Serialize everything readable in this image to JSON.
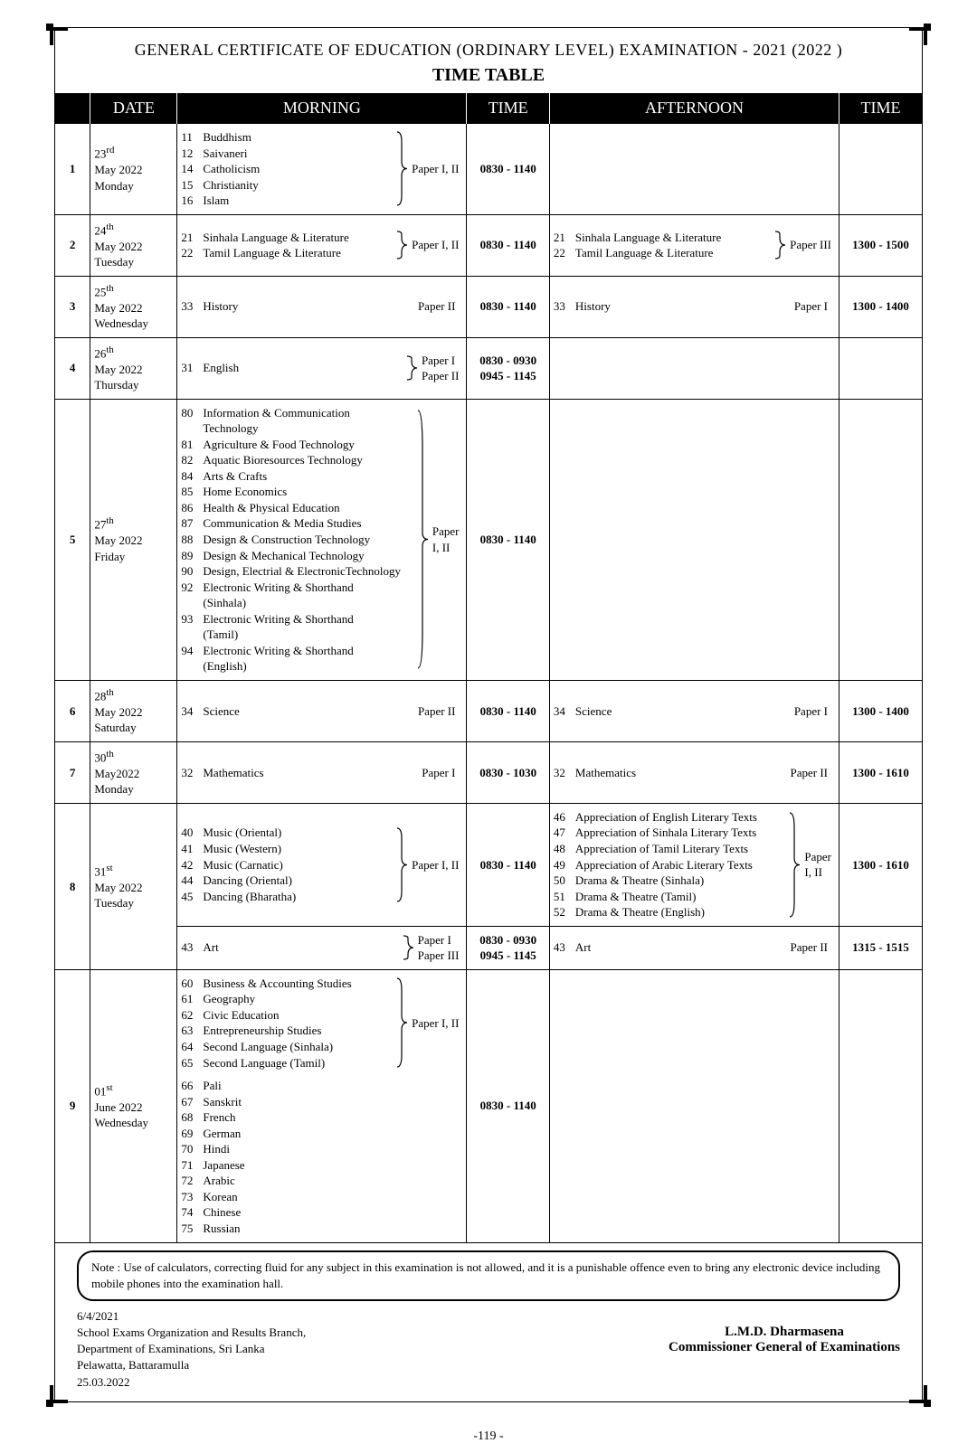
{
  "header": "GENERAL CERTIFICATE OF EDUCATION (ORDINARY LEVEL) EXAMINATION - 2021 (2022 )",
  "subtitle": "TIME TABLE",
  "columns": {
    "date": "DATE",
    "morning": "MORNING",
    "mtime": "TIME",
    "afternoon": "AFTERNOON",
    "atime": "TIME"
  },
  "rows": [
    {
      "num": "1",
      "date_day": "23",
      "date_sup": "rd",
      "date_month": "May 2022",
      "date_dow": "Monday",
      "morning": [
        {
          "subjects": [
            {
              "c": "11",
              "n": "Buddhism"
            },
            {
              "c": "12",
              "n": "Saivaneri"
            },
            {
              "c": "14",
              "n": "Catholicism"
            },
            {
              "c": "15",
              "n": "Christianity"
            },
            {
              "c": "16",
              "n": "Islam"
            }
          ],
          "brace": true,
          "paper": "Paper I, II"
        }
      ],
      "mtime": [
        "0830 - 1140"
      ],
      "afternoon": [],
      "atime": []
    },
    {
      "num": "2",
      "date_day": "24",
      "date_sup": "th",
      "date_month": "May 2022",
      "date_dow": "Tuesday",
      "morning": [
        {
          "subjects": [
            {
              "c": "21",
              "n": "Sinhala Language & Literature"
            },
            {
              "c": "22",
              "n": "Tamil Language & Literature"
            }
          ],
          "brace": true,
          "paper": "Paper I, II"
        }
      ],
      "mtime": [
        "0830 - 1140"
      ],
      "afternoon": [
        {
          "subjects": [
            {
              "c": "21",
              "n": "Sinhala Language & Literature"
            },
            {
              "c": "22",
              "n": "Tamil Language & Literature"
            }
          ],
          "brace": true,
          "paper": "Paper III"
        }
      ],
      "atime": [
        "1300 - 1500"
      ]
    },
    {
      "num": "3",
      "date_day": "25",
      "date_sup": "th",
      "date_month": "May 2022",
      "date_dow": "Wednesday",
      "morning": [
        {
          "subjects": [
            {
              "c": "33",
              "n": "History"
            }
          ],
          "brace": false,
          "paper": "Paper II",
          "right": true
        }
      ],
      "mtime": [
        "0830 - 1140"
      ],
      "afternoon": [
        {
          "subjects": [
            {
              "c": "33",
              "n": "History"
            }
          ],
          "brace": false,
          "paper": "Paper I",
          "right": true
        }
      ],
      "atime": [
        "1300 - 1400"
      ]
    },
    {
      "num": "4",
      "date_day": "26",
      "date_sup": "th",
      "date_month": "May 2022",
      "date_dow": "Thursday",
      "morning": [
        {
          "subjects": [
            {
              "c": "31",
              "n": "English"
            }
          ],
          "brace": true,
          "brace_small": true,
          "paper": "Paper I\nPaper  II"
        }
      ],
      "mtime": [
        "0830 - 0930\n0945 - 1145"
      ],
      "afternoon": [],
      "atime": []
    },
    {
      "num": "5",
      "date_day": "27",
      "date_sup": "th",
      "date_month": "May 2022",
      "date_dow": "Friday",
      "morning": [
        {
          "subjects": [
            {
              "c": "80",
              "n": "Information & Communication",
              "cont": "Technology"
            },
            {
              "c": "81",
              "n": "Agriculture & Food Technology"
            },
            {
              "c": "82",
              "n": "Aquatic Bioresources Technology"
            },
            {
              "c": "84",
              "n": "Arts & Crafts"
            },
            {
              "c": "85",
              "n": "Home Economics"
            },
            {
              "c": "86",
              "n": "Health & Physical Education"
            },
            {
              "c": "87",
              "n": "Communication & Media Studies"
            },
            {
              "c": "88",
              "n": "Design & Construction Technology"
            },
            {
              "c": "89",
              "n": "Design & Mechanical Technology"
            },
            {
              "c": "90",
              "n": "Design, Electrial & ElectronicTechnology"
            },
            {
              "c": "92",
              "n": "Electronic Writing & Shorthand",
              "cont": "(Sinhala)"
            },
            {
              "c": "93",
              "n": "Electronic Writing & Shorthand",
              "cont": "(Tamil)"
            },
            {
              "c": "94",
              "n": "Electronic Writing & Shorthand",
              "cont": "(English)"
            }
          ],
          "brace": true,
          "paper": "Paper\nI, II"
        }
      ],
      "mtime": [
        "0830 - 1140"
      ],
      "afternoon": [],
      "atime": []
    },
    {
      "num": "6",
      "date_day": "28",
      "date_sup": "th",
      "date_month": "May  2022",
      "date_dow": "Saturday",
      "morning": [
        {
          "subjects": [
            {
              "c": "34",
              "n": "Science"
            }
          ],
          "brace": false,
          "paper": "Paper II",
          "right": true
        }
      ],
      "mtime": [
        "0830 - 1140"
      ],
      "afternoon": [
        {
          "subjects": [
            {
              "c": "34",
              "n": "Science"
            }
          ],
          "brace": false,
          "paper": "Paper I",
          "right": true
        }
      ],
      "atime": [
        "1300 - 1400"
      ]
    },
    {
      "num": "7",
      "date_day": "30",
      "date_sup": "th",
      "date_month": "May2022",
      "date_dow": "Monday",
      "morning": [
        {
          "subjects": [
            {
              "c": "32",
              "n": "Mathematics"
            }
          ],
          "brace": false,
          "paper": "Paper I",
          "right": true
        }
      ],
      "mtime": [
        "0830 - 1030"
      ],
      "afternoon": [
        {
          "subjects": [
            {
              "c": "32",
              "n": "Mathematics"
            }
          ],
          "brace": false,
          "paper": "Paper II",
          "right": true
        }
      ],
      "atime": [
        "1300 - 1610"
      ]
    },
    {
      "num": "8",
      "date_day": "31",
      "date_sup": "st",
      "date_month": "May 2022",
      "date_dow": "Tuesday",
      "morning": [
        {
          "subjects": [
            {
              "c": "40",
              "n": "Music (Oriental)"
            },
            {
              "c": "41",
              "n": "Music (Western)"
            },
            {
              "c": "42",
              "n": "Music (Carnatic)"
            },
            {
              "c": "44",
              "n": "Dancing (Oriental)"
            },
            {
              "c": "45",
              "n": "Dancing (Bharatha)"
            }
          ],
          "brace": true,
          "paper": "Paper I, II"
        },
        {
          "subjects": [
            {
              "c": "43",
              "n": "Art"
            }
          ],
          "brace": true,
          "brace_small": true,
          "paper": "Paper I\nPaper III"
        }
      ],
      "mtime": [
        "0830 - 1140",
        "0830 - 0930\n0945 - 1145"
      ],
      "afternoon": [
        {
          "subjects": [
            {
              "c": "46",
              "n": "Appreciation of English Literary Texts"
            },
            {
              "c": "47",
              "n": "Appreciation of Sinhala Literary Texts"
            },
            {
              "c": "48",
              "n": "Appreciation of Tamil  Literary Texts"
            },
            {
              "c": "49",
              "n": "Appreciation of Arabic Literary Texts"
            },
            {
              "c": "50",
              "n": "Drama & Theatre (Sinhala)"
            },
            {
              "c": "51",
              "n": "Drama & Theatre (Tamil)"
            },
            {
              "c": "52",
              "n": "Drama & Theatre (English)"
            }
          ],
          "brace": true,
          "paper": "Paper\nI, II"
        },
        {
          "subjects": [
            {
              "c": "43",
              "n": "Art"
            }
          ],
          "brace": false,
          "paper": "Paper II",
          "right": true
        }
      ],
      "atime": [
        "1300 - 1610",
        "1315 - 1515"
      ]
    },
    {
      "num": "9",
      "date_day": "01",
      "date_sup": "st",
      "date_month": "June 2022",
      "date_dow": "Wednesday",
      "morning": [
        {
          "subjects": [
            {
              "c": "60",
              "n": "Business & Accounting Studies"
            },
            {
              "c": "61",
              "n": "Geography"
            },
            {
              "c": "62",
              "n": "Civic Education"
            },
            {
              "c": "63",
              "n": "Entrepreneurship Studies"
            },
            {
              "c": "64",
              "n": "Second Language (Sinhala)"
            },
            {
              "c": "65",
              "n": "Second Language (Tamil)"
            }
          ],
          "brace": true,
          "paper": "Paper I, II",
          "extra": [
            {
              "c": "66",
              "n": "Pali"
            },
            {
              "c": "67",
              "n": "Sanskrit"
            },
            {
              "c": "68",
              "n": "French"
            },
            {
              "c": "69",
              "n": "German"
            },
            {
              "c": "70",
              "n": "Hindi"
            },
            {
              "c": "71",
              "n": "Japanese"
            },
            {
              "c": "72",
              "n": "Arabic"
            },
            {
              "c": "73",
              "n": "Korean"
            },
            {
              "c": "74",
              "n": "Chinese"
            },
            {
              "c": "75",
              "n": "Russian"
            }
          ]
        }
      ],
      "mtime": [
        "0830 - 1140"
      ],
      "afternoon": [],
      "atime": []
    }
  ],
  "note": "Note : Use of calculators, correcting fluid for any subject in this examination is not allowed, and it is a punishable offence even to bring any electronic device including  mobile phones into the examination hall.",
  "footer": {
    "ref": "6/4/2021",
    "lines": [
      "School Exams Organization and Results Branch,",
      "Department of Examinations, Sri Lanka",
      "Pelawatta, Battaramulla",
      "25.03.2022"
    ],
    "sig_name": "L.M.D. Dharmasena",
    "sig_title": "Commissioner General of Examinations"
  },
  "pagenum": "-119 -"
}
